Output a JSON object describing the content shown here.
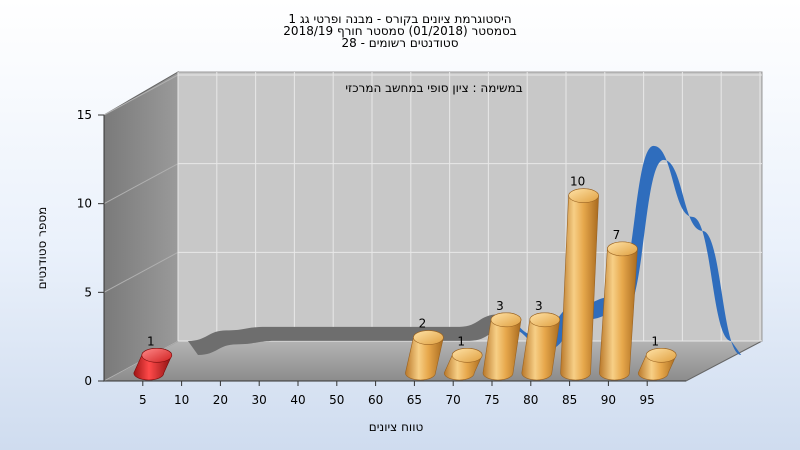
{
  "chart_data": {
    "type": "bar",
    "title_lines": [
      "היסטוגרמת ציונים בקורס - מבנה ופרטי גג 1",
      "בסמסטר  (01/2018)  סמסטר חורף 2018/19",
      "סטודנטים רשומים - 28"
    ],
    "annotation": "במשימה : ציון סופי במחשב המרכזי",
    "xlabel": "טווח ציונים",
    "ylabel": "מספר סטודנטים",
    "categories": [
      "5",
      "10",
      "20",
      "30",
      "40",
      "50",
      "60",
      "65",
      "70",
      "75",
      "80",
      "85",
      "90",
      "95"
    ],
    "values": [
      1,
      0,
      0,
      0,
      0,
      0,
      0,
      2,
      1,
      3,
      3,
      10,
      7,
      1
    ],
    "highlight_categories": [
      "5"
    ],
    "yticks": [
      0,
      5,
      10,
      15
    ],
    "ylim": [
      0,
      15
    ],
    "grid": true,
    "curve": {
      "name": "",
      "values": [
        0,
        0.6,
        0.8,
        0.8,
        0.8,
        0.8,
        0.8,
        0.8,
        1.5,
        0.3,
        2,
        2.5,
        11,
        7,
        0
      ]
    },
    "colors": {
      "bar": "#e5a84e",
      "bar_highlight": "#e03030",
      "curve": "#2f6dbd",
      "curve_flat": "#6e6e6e",
      "back_wall": "#c6c6c6",
      "left_wall": "#8a8a8a",
      "floor": "#a0a0a0"
    }
  }
}
